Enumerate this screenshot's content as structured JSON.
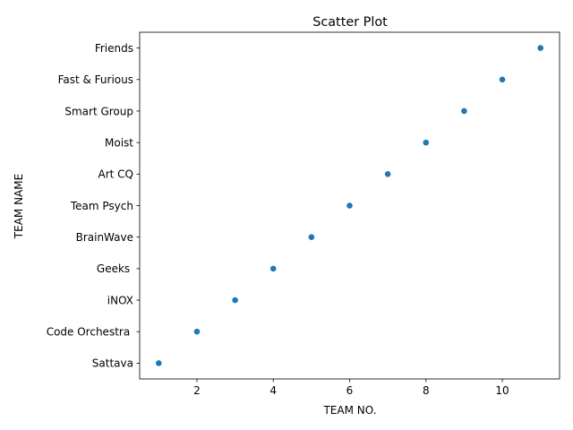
{
  "chart_data": {
    "type": "scatter",
    "title": "Scatter Plot",
    "xlabel": "TEAM NO.",
    "ylabel": "TEAM NAME",
    "xlim": [
      0.5,
      11.5
    ],
    "x_ticks": [
      2,
      4,
      6,
      8,
      10
    ],
    "categories": [
      "Sattava",
      "Code Orchestra ",
      "iNOX",
      "Geeks ",
      "BrainWave",
      "Team Psych",
      "Art CQ",
      "Moist",
      "Smart Group",
      "Fast & Furious",
      "Friends"
    ],
    "points": [
      {
        "x": 1,
        "y": "Sattava"
      },
      {
        "x": 2,
        "y": "Code Orchestra "
      },
      {
        "x": 3,
        "y": "iNOX"
      },
      {
        "x": 4,
        "y": "Geeks "
      },
      {
        "x": 5,
        "y": "BrainWave"
      },
      {
        "x": 6,
        "y": "Team Psych"
      },
      {
        "x": 7,
        "y": "Art CQ"
      },
      {
        "x": 8,
        "y": "Moist"
      },
      {
        "x": 9,
        "y": "Smart Group"
      },
      {
        "x": 10,
        "y": "Fast & Furious"
      },
      {
        "x": 11,
        "y": "Friends"
      }
    ],
    "marker_color": "#1f77b4",
    "grid": false,
    "legend": "none"
  }
}
